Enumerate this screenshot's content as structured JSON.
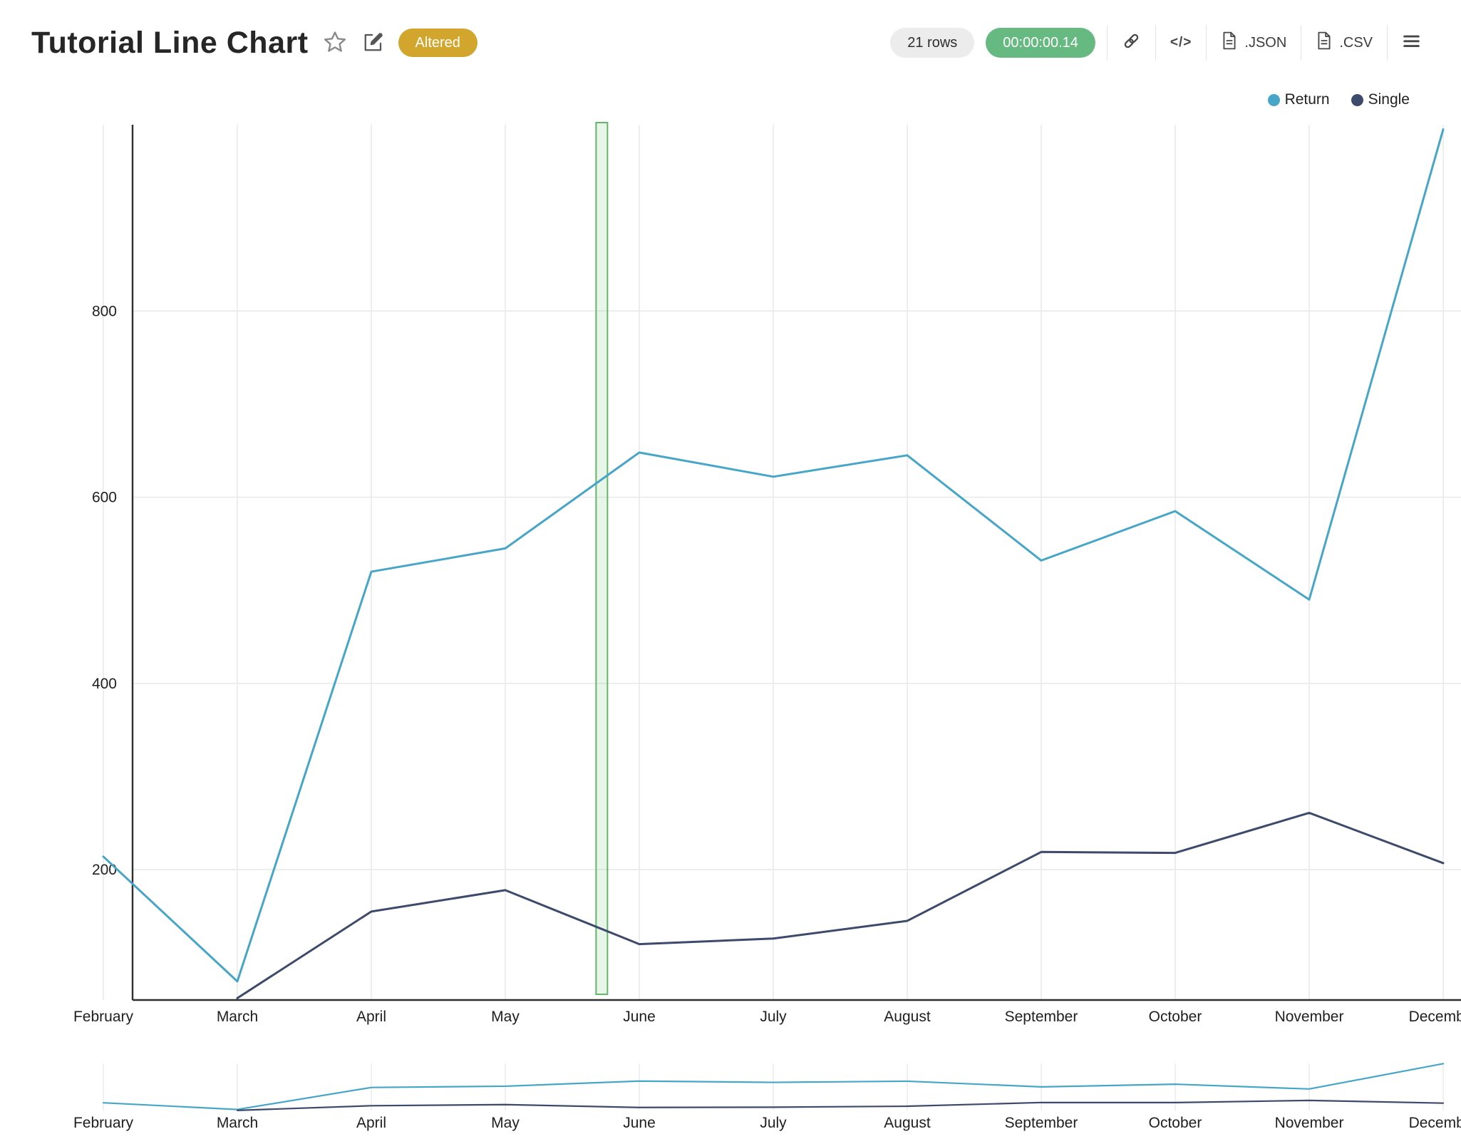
{
  "header": {
    "title": "Tutorial Line Chart",
    "altered_badge": "Altered",
    "rows_badge": "21 rows",
    "timer_badge": "00:00:00.14",
    "code_button_label": "</>",
    "json_button_label": ".JSON",
    "csv_button_label": ".CSV"
  },
  "icons": {
    "star": "star-outline",
    "edit": "edit-pencil-square",
    "link": "link-chain",
    "file": "document-page",
    "menu": "hamburger"
  },
  "colors": {
    "return_series": "#47a6c8",
    "single_series": "#3e4a6b",
    "grid": "#eaeaea",
    "axis": "#2e2e2e",
    "tick_text": "#1e1e1e",
    "band_fill": "rgba(129,199,132,0.18)",
    "band_stroke": "#63b56a",
    "altered_bg": "#d2a62c",
    "timer_bg": "#66b981",
    "rows_bg": "#ececec"
  },
  "chart_data": {
    "type": "line",
    "title": "Tutorial Line Chart",
    "categories": [
      "February",
      "March",
      "April",
      "May",
      "June",
      "July",
      "August",
      "September",
      "October",
      "November",
      "December"
    ],
    "series": [
      {
        "name": "Return",
        "color": "#47a6c8",
        "values": [
          214,
          80,
          520,
          545,
          648,
          622,
          645,
          532,
          585,
          490,
          995
        ]
      },
      {
        "name": "Single",
        "color": "#3e4a6b",
        "values": [
          null,
          62,
          155,
          178,
          120,
          126,
          145,
          219,
          218,
          261,
          207
        ]
      }
    ],
    "ylim": [
      60,
      1000
    ],
    "yticks": [
      200,
      400,
      600,
      800
    ],
    "grid": true,
    "legend_position": "top-right",
    "legend": [
      "Return",
      "Single"
    ],
    "annotation": {
      "type": "vertical-band",
      "between": [
        "May",
        "June"
      ],
      "position_fraction": 0.72,
      "width_fraction": 0.085
    },
    "navigator": {
      "present": true,
      "categories_same_as_main": true
    }
  }
}
